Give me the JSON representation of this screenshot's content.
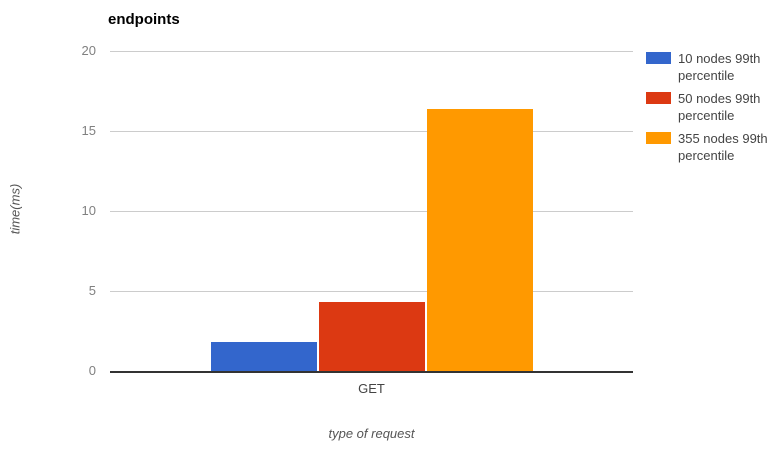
{
  "chart_data": {
    "type": "bar",
    "title": "endpoints",
    "xlabel": "type of request",
    "ylabel": "time(ms)",
    "categories": [
      "GET"
    ],
    "series": [
      {
        "name": "10 nodes 99th percentile",
        "color": "#3366cc",
        "values": [
          1.8
        ]
      },
      {
        "name": "50 nodes 99th percentile",
        "color": "#dc3912",
        "values": [
          4.3
        ]
      },
      {
        "name": "355 nodes 99th percentile",
        "color": "#ff9900",
        "values": [
          16.4
        ]
      }
    ],
    "ylim": [
      0,
      20
    ],
    "yticks": [
      0,
      5,
      10,
      15,
      20
    ],
    "grid": true,
    "legend_position": "right"
  },
  "colors": {
    "background": "#ffffff",
    "gridline": "#cccccc",
    "axis_line": "#333333",
    "tick_label": "#808080",
    "category_label": "#444444",
    "axis_title": "#555555",
    "title": "#000000",
    "legend_text": "#444444"
  }
}
